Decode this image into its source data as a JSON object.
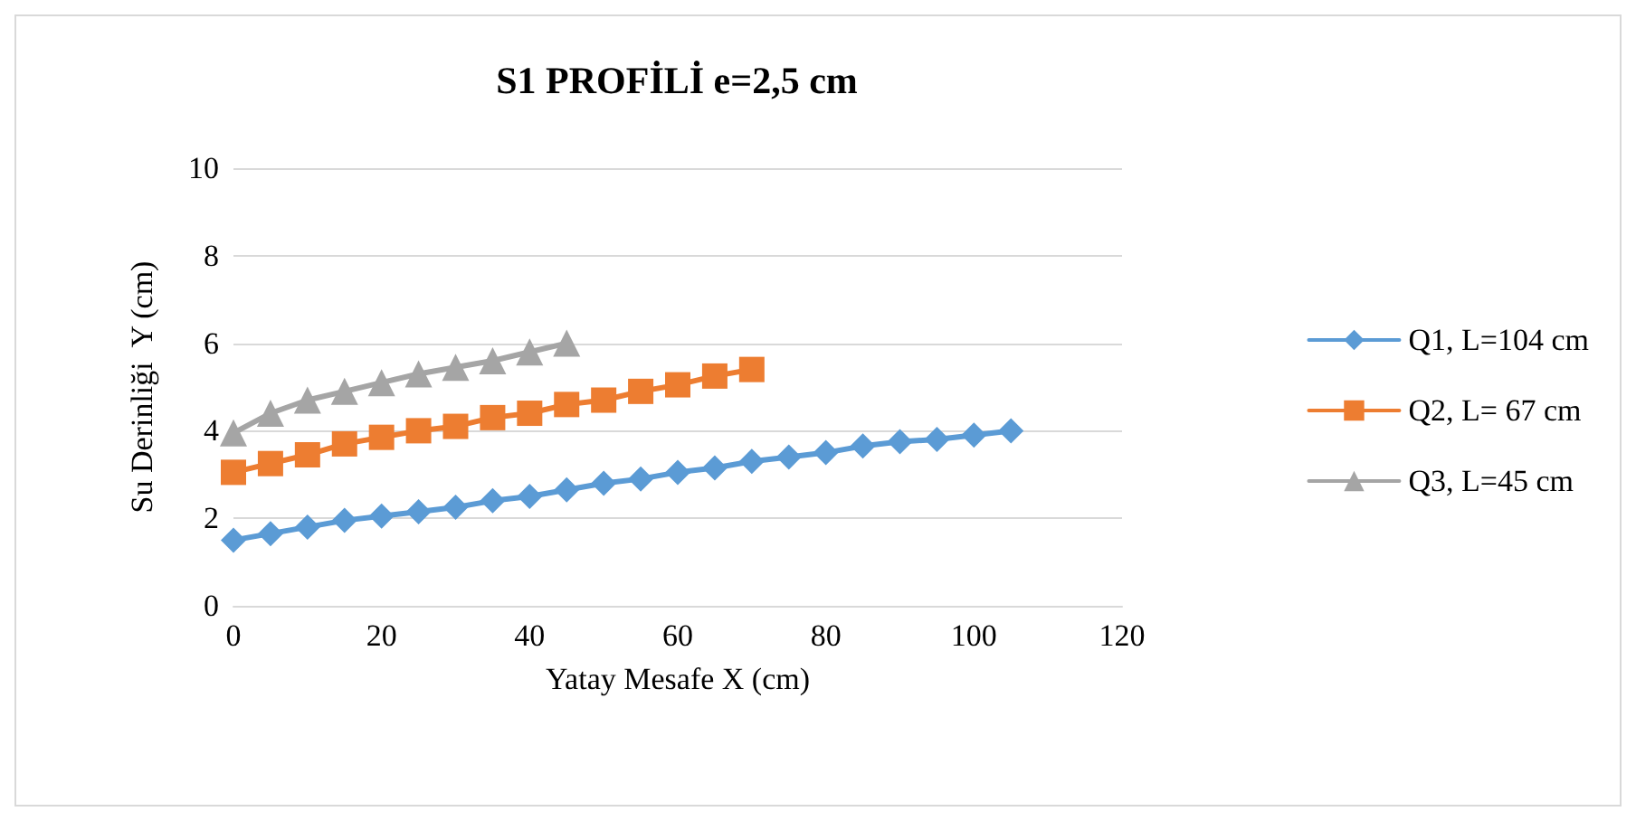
{
  "chart_data": {
    "type": "line",
    "title": "S1 PROFİLİ e=2,5 cm",
    "xlabel": "Yatay Mesafe X (cm)",
    "ylabel": "Su Derinliği  Y (cm)",
    "xlim": [
      0,
      120
    ],
    "xticks": [
      0,
      20,
      40,
      60,
      80,
      100,
      120
    ],
    "ylim": [
      0,
      10
    ],
    "yticks": [
      0,
      2,
      4,
      6,
      8,
      10
    ],
    "grid": "y",
    "legend": "right",
    "series": [
      {
        "name": "Q1, L=104 cm",
        "color": "#5b9bd5",
        "marker": "diamond",
        "x": [
          0,
          5,
          10,
          15,
          20,
          25,
          30,
          35,
          40,
          45,
          50,
          55,
          60,
          65,
          70,
          75,
          80,
          85,
          90,
          95,
          100,
          105
        ],
        "values": [
          1.5,
          1.65,
          1.8,
          1.95,
          2.05,
          2.15,
          2.25,
          2.4,
          2.5,
          2.65,
          2.8,
          2.9,
          3.05,
          3.15,
          3.3,
          3.4,
          3.5,
          3.65,
          3.75,
          3.8,
          3.9,
          4.0
        ]
      },
      {
        "name": "Q2, L= 67 cm",
        "color": "#ed7d31",
        "marker": "square",
        "x": [
          0,
          5,
          10,
          15,
          20,
          25,
          30,
          35,
          40,
          45,
          50,
          55,
          60,
          65,
          70
        ],
        "values": [
          3.05,
          3.25,
          3.45,
          3.7,
          3.85,
          4.0,
          4.1,
          4.3,
          4.4,
          4.6,
          4.7,
          4.9,
          5.05,
          5.25,
          5.4
        ]
      },
      {
        "name": "Q3, L=45 cm",
        "color": "#a5a5a5",
        "marker": "triangle",
        "x": [
          0,
          5,
          10,
          15,
          20,
          25,
          30,
          35,
          40,
          45
        ],
        "values": [
          3.95,
          4.4,
          4.7,
          4.9,
          5.1,
          5.3,
          5.45,
          5.6,
          5.8,
          6.0
        ]
      }
    ]
  }
}
